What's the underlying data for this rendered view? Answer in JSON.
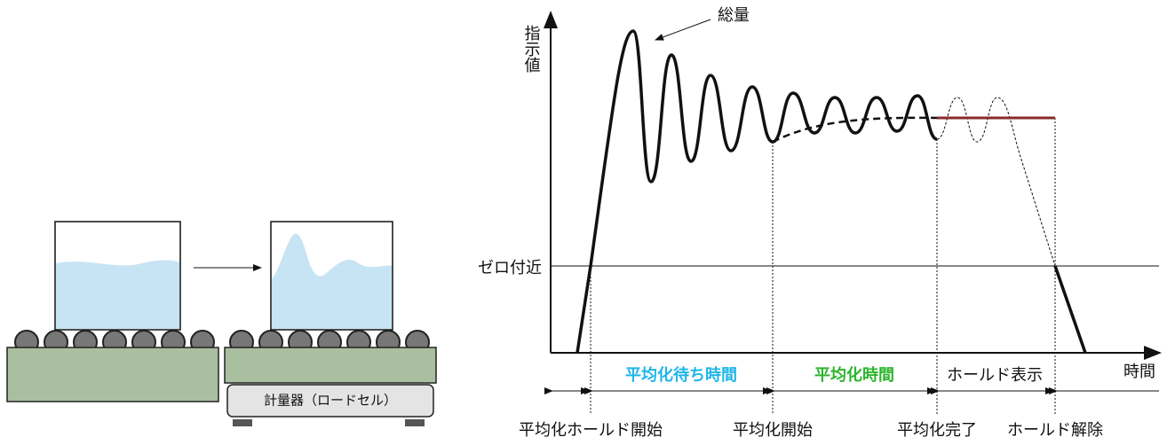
{
  "illustration": {
    "scale_label": "計量器（ロードセル）"
  },
  "graph": {
    "y_axis_label": "指示値",
    "x_axis_label": "時間",
    "peak_label": "総量",
    "zero_label": "ゼロ付近",
    "phases": [
      "平均化待ち時間",
      "平均化時間",
      "ホールド表示"
    ],
    "events": [
      "平均化ホールド開始",
      "平均化開始",
      "平均化完了",
      "ホールド解除"
    ]
  }
}
